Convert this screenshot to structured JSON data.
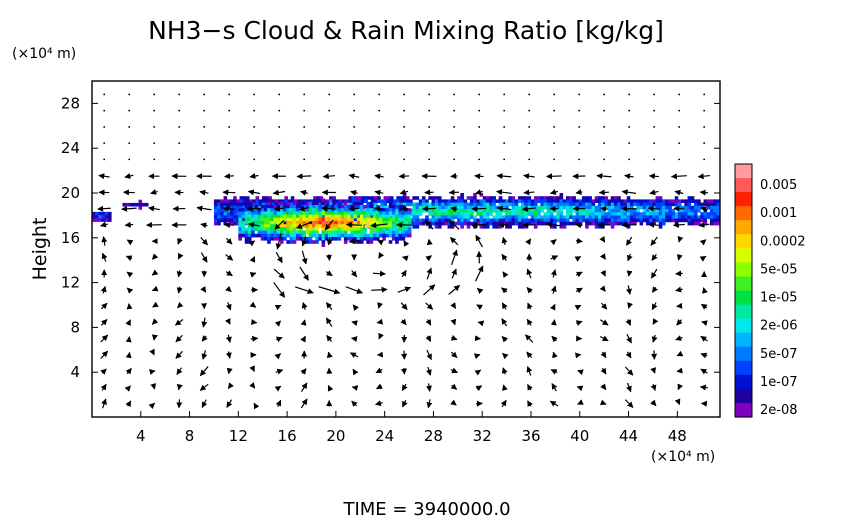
{
  "chart_data": {
    "type": "heatmap",
    "title": "NH3−s Cloud & Rain Mixing Ratio [kg/kg]",
    "ylabel": "Height",
    "xunit": "(×10⁴ m)",
    "yunit": "(×10⁴ m)",
    "footer": "TIME = 3940000.0",
    "xlim": [
      0,
      51.5
    ],
    "ylim": [
      0,
      30
    ],
    "xticks": [
      "4",
      "8",
      "12",
      "16",
      "20",
      "24",
      "28",
      "32",
      "36",
      "40",
      "44",
      "48"
    ],
    "yticks": [
      "4",
      "8",
      "12",
      "16",
      "20",
      "24",
      "28"
    ],
    "colorbar": {
      "labels": [
        "0.005",
        "0.001",
        "0.0002",
        "5e-05",
        "1e-05",
        "2e-06",
        "5e-07",
        "1e-07",
        "2e-08"
      ],
      "colors": [
        "#ff9c9c",
        "#ff5a5a",
        "#ff2000",
        "#ff6a00",
        "#ffa800",
        "#ffd800",
        "#d8ff00",
        "#90ff00",
        "#40f020",
        "#00e040",
        "#00e8a0",
        "#00e8e8",
        "#00b4ff",
        "#0078ff",
        "#0040ff",
        "#0010d0",
        "#2000a0",
        "#8000c0"
      ]
    },
    "cloud_layers": [
      {
        "x_start": 0.0,
        "x_end": 1.5,
        "y_bottom": 17.6,
        "y_top": 18.6,
        "max_level": "5e-07"
      },
      {
        "x_start": 2.5,
        "x_end": 4.5,
        "y_bottom": 18.8,
        "y_top": 19.4,
        "max_level": "1e-07"
      },
      {
        "x_start": 10.0,
        "x_end": 51.5,
        "y_bottom": 17.0,
        "y_top": 20.0,
        "max_level": "1e-05"
      },
      {
        "x_start": 12.0,
        "x_end": 26.0,
        "y_bottom": 15.5,
        "y_top": 19.5,
        "max_level": "0.005"
      }
    ],
    "wind_vectors": "arrows on regular grid, spacing 2 x 1.5 (x10^4 m); strong converging circulation near x=18-28, y=12-17"
  }
}
